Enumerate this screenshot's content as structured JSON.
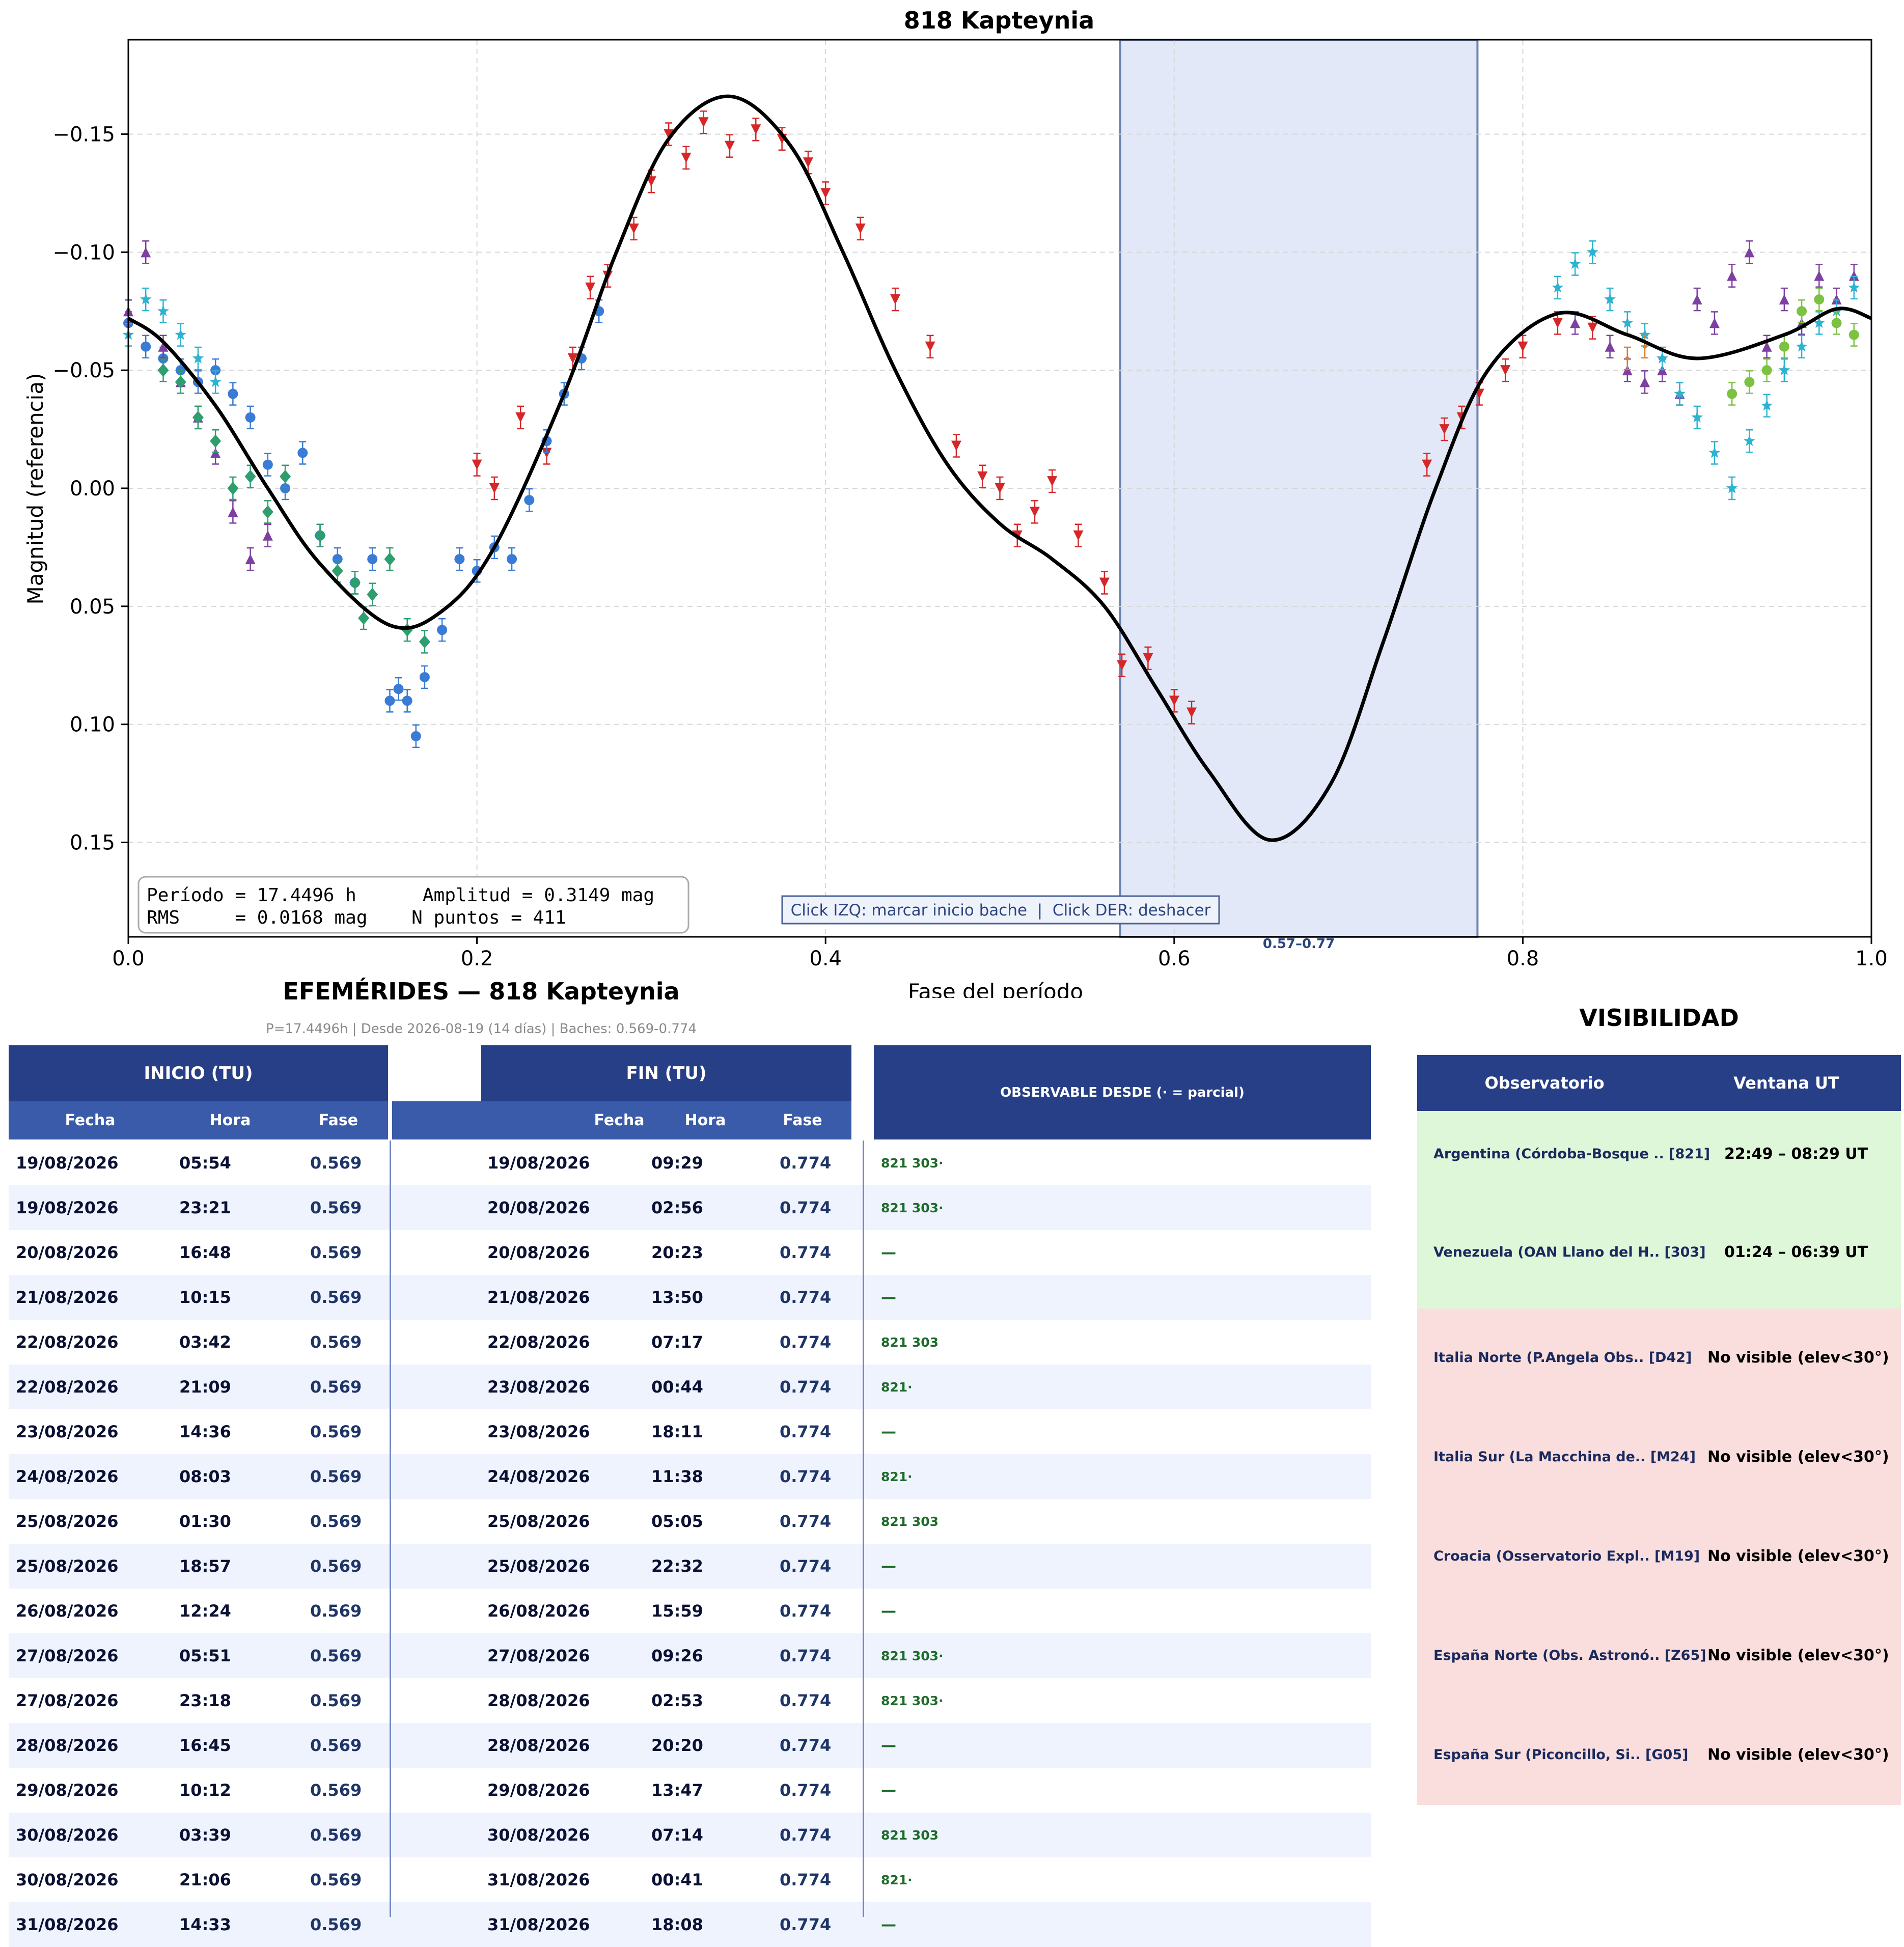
{
  "chart_data": {
    "type": "scatter",
    "title": "818 Kapteynia",
    "xlabel": "Fase del período",
    "ylabel": "Magnitud (referencia)",
    "xlim": [
      0.0,
      1.0
    ],
    "ylim": [
      0.19,
      -0.19
    ],
    "y_inverted": true,
    "grid": true,
    "x_ticks": [
      "0.0",
      "0.2",
      "0.4",
      "0.6",
      "0.8",
      "1.0"
    ],
    "y_ticks": [
      "−0.15",
      "−0.10",
      "−0.05",
      "0.00",
      "0.05",
      "0.10",
      "0.15"
    ],
    "highlight_band": {
      "x_start": 0.569,
      "x_end": 0.774,
      "label": "0.57–0.77",
      "color": "#e2e8f8"
    },
    "stats_box": {
      "line1": "Período = 17.4496 h      Amplitud = 0.3149 mag",
      "line2": "RMS     = 0.0168 mag    N puntos = 411"
    },
    "hint_box": "Click IZQ: marcar inicio bache  |  Click DER: deshacer",
    "fit_curve": {
      "color": "#000000",
      "points": [
        [
          0.0,
          -0.072
        ],
        [
          0.02,
          -0.062
        ],
        [
          0.05,
          -0.035
        ],
        [
          0.08,
          0.0
        ],
        [
          0.11,
          0.032
        ],
        [
          0.15,
          0.058
        ],
        [
          0.18,
          0.052
        ],
        [
          0.21,
          0.025
        ],
        [
          0.25,
          -0.04
        ],
        [
          0.28,
          -0.1
        ],
        [
          0.31,
          -0.148
        ],
        [
          0.345,
          -0.166
        ],
        [
          0.38,
          -0.145
        ],
        [
          0.41,
          -0.1
        ],
        [
          0.44,
          -0.05
        ],
        [
          0.47,
          -0.01
        ],
        [
          0.5,
          0.015
        ],
        [
          0.53,
          0.03
        ],
        [
          0.56,
          0.05
        ],
        [
          0.59,
          0.085
        ],
        [
          0.62,
          0.12
        ],
        [
          0.655,
          0.149
        ],
        [
          0.69,
          0.125
        ],
        [
          0.72,
          0.065
        ],
        [
          0.75,
          0.0
        ],
        [
          0.78,
          -0.05
        ],
        [
          0.82,
          -0.074
        ],
        [
          0.86,
          -0.065
        ],
        [
          0.9,
          -0.055
        ],
        [
          0.95,
          -0.065
        ],
        [
          0.98,
          -0.076
        ],
        [
          1.0,
          -0.072
        ]
      ]
    },
    "series": [
      {
        "marker": "triangle-down",
        "color": "#d62728",
        "points": [
          [
            0.2,
            -0.01
          ],
          [
            0.21,
            0.0
          ],
          [
            0.225,
            -0.03
          ],
          [
            0.24,
            -0.015
          ],
          [
            0.255,
            -0.055
          ],
          [
            0.265,
            -0.085
          ],
          [
            0.275,
            -0.09
          ],
          [
            0.29,
            -0.11
          ],
          [
            0.3,
            -0.13
          ],
          [
            0.31,
            -0.15
          ],
          [
            0.32,
            -0.14
          ],
          [
            0.33,
            -0.155
          ],
          [
            0.345,
            -0.145
          ],
          [
            0.36,
            -0.152
          ],
          [
            0.375,
            -0.148
          ],
          [
            0.39,
            -0.138
          ],
          [
            0.4,
            -0.125
          ],
          [
            0.42,
            -0.11
          ],
          [
            0.44,
            -0.08
          ],
          [
            0.46,
            -0.06
          ],
          [
            0.475,
            -0.018
          ],
          [
            0.49,
            -0.005
          ],
          [
            0.5,
            0.0
          ],
          [
            0.51,
            0.02
          ],
          [
            0.52,
            0.01
          ],
          [
            0.53,
            -0.003
          ],
          [
            0.545,
            0.02
          ],
          [
            0.56,
            0.04
          ],
          [
            0.57,
            0.075
          ],
          [
            0.585,
            0.072
          ],
          [
            0.6,
            0.09
          ],
          [
            0.61,
            0.095
          ],
          [
            0.745,
            -0.01
          ],
          [
            0.755,
            -0.025
          ],
          [
            0.765,
            -0.03
          ],
          [
            0.775,
            -0.04
          ],
          [
            0.79,
            -0.05
          ],
          [
            0.8,
            -0.06
          ],
          [
            0.82,
            -0.07
          ],
          [
            0.84,
            -0.068
          ]
        ]
      },
      {
        "marker": "circle",
        "color": "#3a7bd5",
        "points": [
          [
            0.0,
            -0.07
          ],
          [
            0.01,
            -0.06
          ],
          [
            0.02,
            -0.055
          ],
          [
            0.03,
            -0.05
          ],
          [
            0.04,
            -0.045
          ],
          [
            0.05,
            -0.05
          ],
          [
            0.06,
            -0.04
          ],
          [
            0.07,
            -0.03
          ],
          [
            0.08,
            -0.01
          ],
          [
            0.09,
            0.0
          ],
          [
            0.1,
            -0.015
          ],
          [
            0.11,
            0.02
          ],
          [
            0.12,
            0.03
          ],
          [
            0.13,
            0.04
          ],
          [
            0.14,
            0.03
          ],
          [
            0.15,
            0.09
          ],
          [
            0.155,
            0.085
          ],
          [
            0.16,
            0.09
          ],
          [
            0.165,
            0.105
          ],
          [
            0.17,
            0.08
          ],
          [
            0.18,
            0.06
          ],
          [
            0.19,
            0.03
          ],
          [
            0.2,
            0.035
          ],
          [
            0.21,
            0.025
          ],
          [
            0.22,
            0.03
          ],
          [
            0.23,
            0.005
          ],
          [
            0.24,
            -0.02
          ],
          [
            0.25,
            -0.04
          ],
          [
            0.26,
            -0.055
          ],
          [
            0.27,
            -0.075
          ]
        ]
      },
      {
        "marker": "triangle-up",
        "color": "#7d3fa0",
        "points": [
          [
            0.0,
            -0.075
          ],
          [
            0.01,
            -0.1
          ],
          [
            0.02,
            -0.06
          ],
          [
            0.03,
            -0.045
          ],
          [
            0.04,
            -0.03
          ],
          [
            0.05,
            -0.015
          ],
          [
            0.06,
            0.01
          ],
          [
            0.07,
            0.03
          ],
          [
            0.08,
            0.02
          ],
          [
            0.83,
            -0.07
          ],
          [
            0.85,
            -0.06
          ],
          [
            0.86,
            -0.05
          ],
          [
            0.87,
            -0.045
          ],
          [
            0.88,
            -0.05
          ],
          [
            0.89,
            -0.04
          ],
          [
            0.9,
            -0.08
          ],
          [
            0.91,
            -0.07
          ],
          [
            0.92,
            -0.09
          ],
          [
            0.93,
            -0.1
          ],
          [
            0.94,
            -0.06
          ],
          [
            0.95,
            -0.08
          ],
          [
            0.96,
            -0.07
          ],
          [
            0.97,
            -0.09
          ],
          [
            0.98,
            -0.08
          ],
          [
            0.99,
            -0.09
          ]
        ]
      },
      {
        "marker": "star",
        "color": "#2bb3d1",
        "points": [
          [
            0.0,
            -0.065
          ],
          [
            0.01,
            -0.08
          ],
          [
            0.02,
            -0.075
          ],
          [
            0.03,
            -0.065
          ],
          [
            0.04,
            -0.055
          ],
          [
            0.05,
            -0.045
          ],
          [
            0.82,
            -0.085
          ],
          [
            0.83,
            -0.095
          ],
          [
            0.84,
            -0.1
          ],
          [
            0.85,
            -0.08
          ],
          [
            0.86,
            -0.07
          ],
          [
            0.87,
            -0.065
          ],
          [
            0.88,
            -0.055
          ],
          [
            0.89,
            -0.04
          ],
          [
            0.9,
            -0.03
          ],
          [
            0.91,
            -0.015
          ],
          [
            0.92,
            0.0
          ],
          [
            0.93,
            -0.02
          ],
          [
            0.94,
            -0.035
          ],
          [
            0.95,
            -0.05
          ],
          [
            0.96,
            -0.06
          ],
          [
            0.97,
            -0.07
          ],
          [
            0.98,
            -0.075
          ],
          [
            0.99,
            -0.085
          ]
        ]
      },
      {
        "marker": "diamond",
        "color": "#2e9e6e",
        "points": [
          [
            0.02,
            -0.05
          ],
          [
            0.03,
            -0.045
          ],
          [
            0.04,
            -0.03
          ],
          [
            0.05,
            -0.02
          ],
          [
            0.06,
            0.0
          ],
          [
            0.07,
            -0.005
          ],
          [
            0.08,
            0.01
          ],
          [
            0.09,
            -0.005
          ],
          [
            0.11,
            0.02
          ],
          [
            0.12,
            0.035
          ],
          [
            0.13,
            0.04
          ],
          [
            0.135,
            0.055
          ],
          [
            0.14,
            0.045
          ],
          [
            0.15,
            0.03
          ],
          [
            0.16,
            0.06
          ],
          [
            0.17,
            0.065
          ]
        ]
      },
      {
        "marker": "circle",
        "color": "#7cc242",
        "points": [
          [
            0.92,
            -0.04
          ],
          [
            0.93,
            -0.045
          ],
          [
            0.94,
            -0.05
          ],
          [
            0.95,
            -0.06
          ],
          [
            0.96,
            -0.075
          ],
          [
            0.97,
            -0.08
          ],
          [
            0.98,
            -0.07
          ],
          [
            0.99,
            -0.065
          ]
        ]
      },
      {
        "marker": "errorbar",
        "color": "#e07b28",
        "points": [
          [
            0.86,
            -0.055
          ],
          [
            0.87,
            -0.06
          ]
        ]
      }
    ]
  },
  "ephemerides": {
    "title": "EFEMÉRIDES — 818 Kapteynia",
    "subtitle": "P=17.4496h  |  Desde 2026-08-19 (14 días)  |  Baches: 0.569-0.774",
    "group_start": "INICIO (TU)",
    "group_end": "FIN (TU)",
    "group_obs": "OBSERVABLE DESDE  (· = parcial)",
    "col_date": "Fecha",
    "col_time": "Hora",
    "col_phase": "Fase",
    "rows": [
      {
        "d1": "19/08/2026",
        "h1": "05:54",
        "p1": "0.569",
        "d2": "19/08/2026",
        "h2": "09:29",
        "p2": "0.774",
        "obs": "821 303·"
      },
      {
        "d1": "19/08/2026",
        "h1": "23:21",
        "p1": "0.569",
        "d2": "20/08/2026",
        "h2": "02:56",
        "p2": "0.774",
        "obs": "821 303·"
      },
      {
        "d1": "20/08/2026",
        "h1": "16:48",
        "p1": "0.569",
        "d2": "20/08/2026",
        "h2": "20:23",
        "p2": "0.774",
        "obs": "—"
      },
      {
        "d1": "21/08/2026",
        "h1": "10:15",
        "p1": "0.569",
        "d2": "21/08/2026",
        "h2": "13:50",
        "p2": "0.774",
        "obs": "—"
      },
      {
        "d1": "22/08/2026",
        "h1": "03:42",
        "p1": "0.569",
        "d2": "22/08/2026",
        "h2": "07:17",
        "p2": "0.774",
        "obs": "821 303"
      },
      {
        "d1": "22/08/2026",
        "h1": "21:09",
        "p1": "0.569",
        "d2": "23/08/2026",
        "h2": "00:44",
        "p2": "0.774",
        "obs": "821·"
      },
      {
        "d1": "23/08/2026",
        "h1": "14:36",
        "p1": "0.569",
        "d2": "23/08/2026",
        "h2": "18:11",
        "p2": "0.774",
        "obs": "—"
      },
      {
        "d1": "24/08/2026",
        "h1": "08:03",
        "p1": "0.569",
        "d2": "24/08/2026",
        "h2": "11:38",
        "p2": "0.774",
        "obs": "821·"
      },
      {
        "d1": "25/08/2026",
        "h1": "01:30",
        "p1": "0.569",
        "d2": "25/08/2026",
        "h2": "05:05",
        "p2": "0.774",
        "obs": "821 303"
      },
      {
        "d1": "25/08/2026",
        "h1": "18:57",
        "p1": "0.569",
        "d2": "25/08/2026",
        "h2": "22:32",
        "p2": "0.774",
        "obs": "—"
      },
      {
        "d1": "26/08/2026",
        "h1": "12:24",
        "p1": "0.569",
        "d2": "26/08/2026",
        "h2": "15:59",
        "p2": "0.774",
        "obs": "—"
      },
      {
        "d1": "27/08/2026",
        "h1": "05:51",
        "p1": "0.569",
        "d2": "27/08/2026",
        "h2": "09:26",
        "p2": "0.774",
        "obs": "821 303·"
      },
      {
        "d1": "27/08/2026",
        "h1": "23:18",
        "p1": "0.569",
        "d2": "28/08/2026",
        "h2": "02:53",
        "p2": "0.774",
        "obs": "821 303·"
      },
      {
        "d1": "28/08/2026",
        "h1": "16:45",
        "p1": "0.569",
        "d2": "28/08/2026",
        "h2": "20:20",
        "p2": "0.774",
        "obs": "—"
      },
      {
        "d1": "29/08/2026",
        "h1": "10:12",
        "p1": "0.569",
        "d2": "29/08/2026",
        "h2": "13:47",
        "p2": "0.774",
        "obs": "—"
      },
      {
        "d1": "30/08/2026",
        "h1": "03:39",
        "p1": "0.569",
        "d2": "30/08/2026",
        "h2": "07:14",
        "p2": "0.774",
        "obs": "821 303"
      },
      {
        "d1": "30/08/2026",
        "h1": "21:06",
        "p1": "0.569",
        "d2": "31/08/2026",
        "h2": "00:41",
        "p2": "0.774",
        "obs": "821·"
      },
      {
        "d1": "31/08/2026",
        "h1": "14:33",
        "p1": "0.569",
        "d2": "31/08/2026",
        "h2": "18:08",
        "p2": "0.774",
        "obs": "—"
      }
    ]
  },
  "visibility": {
    "title": "VISIBILIDAD",
    "col_observatory": "Observatorio",
    "col_window": "Ventana UT",
    "colors": {
      "visible": "#dff7d9",
      "not_visible": "#fadedd",
      "header": "#263f87"
    },
    "rows": [
      {
        "name": "Argentina (Córdoba-Bosque .. [821]",
        "window": "22:49 – 08:29 UT",
        "visible": true
      },
      {
        "name": "Venezuela (OAN Llano del H.. [303]",
        "window": "01:24 – 06:39 UT",
        "visible": true
      },
      {
        "name": "Italia Norte (P.Angela Obs.. [D42]",
        "window": "No visible (elev<30°)",
        "visible": false
      },
      {
        "name": "Italia Sur (La Macchina de.. [M24]",
        "window": "No visible (elev<30°)",
        "visible": false
      },
      {
        "name": "Croacia (Osservatorio Expl.. [M19]",
        "window": "No visible (elev<30°)",
        "visible": false
      },
      {
        "name": "España Norte (Obs. Astronó.. [Z65]",
        "window": "No visible (elev<30°)",
        "visible": false
      },
      {
        "name": "España Sur (Piconcillo, Si.. [G05]",
        "window": "No visible (elev<30°)",
        "visible": false
      }
    ]
  }
}
